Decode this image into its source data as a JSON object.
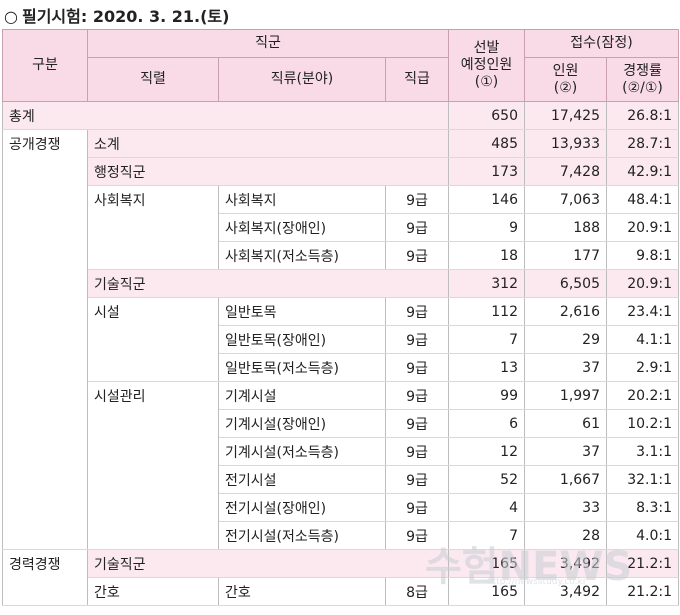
{
  "title": "필기시험: 2020. 3. 21.(토)",
  "header": {
    "gubun": "구분",
    "jikgun": "직군",
    "jikryeol": "직렬",
    "jikryu": "직류(분야)",
    "jikgeup": "직급",
    "seonbal_l1": "선발",
    "seonbal_l2": "예정인원",
    "seonbal_l3": "(①)",
    "jeopsu": "접수(잠정)",
    "inwon_l1": "인원",
    "inwon_l2": "(②)",
    "rate_l1": "경쟁률",
    "rate_l2": "(②/①)"
  },
  "rows": [
    {
      "c1": "총계",
      "c2": "",
      "c3": "",
      "c4": "",
      "sel": "650",
      "app": "17,425",
      "rate": "26.8:1"
    },
    {
      "c1": "공개경쟁",
      "c2": "소계",
      "c3": "",
      "c4": "",
      "sel": "485",
      "app": "13,933",
      "rate": "28.7:1"
    },
    {
      "c1": "",
      "c2": "행정직군",
      "c3": "",
      "c4": "",
      "sel": "173",
      "app": "7,428",
      "rate": "42.9:1"
    },
    {
      "c1": "",
      "c2": "사회복지",
      "c3": "사회복지",
      "c4": "9급",
      "sel": "146",
      "app": "7,063",
      "rate": "48.4:1"
    },
    {
      "c1": "",
      "c2": "",
      "c3": "사회복지(장애인)",
      "c4": "9급",
      "sel": "9",
      "app": "188",
      "rate": "20.9:1"
    },
    {
      "c1": "",
      "c2": "",
      "c3": "사회복지(저소득층)",
      "c4": "9급",
      "sel": "18",
      "app": "177",
      "rate": "9.8:1"
    },
    {
      "c1": "",
      "c2": "기술직군",
      "c3": "",
      "c4": "",
      "sel": "312",
      "app": "6,505",
      "rate": "20.9:1"
    },
    {
      "c1": "",
      "c2": "시설",
      "c3": "일반토목",
      "c4": "9급",
      "sel": "112",
      "app": "2,616",
      "rate": "23.4:1"
    },
    {
      "c1": "",
      "c2": "",
      "c3": "일반토목(장애인)",
      "c4": "9급",
      "sel": "7",
      "app": "29",
      "rate": "4.1:1"
    },
    {
      "c1": "",
      "c2": "",
      "c3": "일반토목(저소득층)",
      "c4": "9급",
      "sel": "13",
      "app": "37",
      "rate": "2.9:1"
    },
    {
      "c1": "",
      "c2": "시설관리",
      "c3": "기계시설",
      "c4": "9급",
      "sel": "99",
      "app": "1,997",
      "rate": "20.2:1"
    },
    {
      "c1": "",
      "c2": "",
      "c3": "기계시설(장애인)",
      "c4": "9급",
      "sel": "6",
      "app": "61",
      "rate": "10.2:1"
    },
    {
      "c1": "",
      "c2": "",
      "c3": "기계시설(저소득층)",
      "c4": "9급",
      "sel": "12",
      "app": "37",
      "rate": "3.1:1"
    },
    {
      "c1": "",
      "c2": "",
      "c3": "전기시설",
      "c4": "9급",
      "sel": "52",
      "app": "1,667",
      "rate": "32.1:1"
    },
    {
      "c1": "",
      "c2": "",
      "c3": "전기시설(장애인)",
      "c4": "9급",
      "sel": "4",
      "app": "33",
      "rate": "8.3:1"
    },
    {
      "c1": "",
      "c2": "",
      "c3": "전기시설(저소득층)",
      "c4": "9급",
      "sel": "7",
      "app": "28",
      "rate": "4.0:1"
    },
    {
      "c1": "경력경쟁",
      "c2": "기술직군",
      "c3": "",
      "c4": "",
      "sel": "165",
      "app": "3,492",
      "rate": "21.2:1"
    },
    {
      "c1": "",
      "c2": "간호",
      "c3": "간호",
      "c4": "8급",
      "sel": "165",
      "app": "3,492",
      "rate": "21.2:1"
    }
  ],
  "watermark": {
    "main": "수험NEWS",
    "url": "http://newsstudy.co.kr"
  }
}
